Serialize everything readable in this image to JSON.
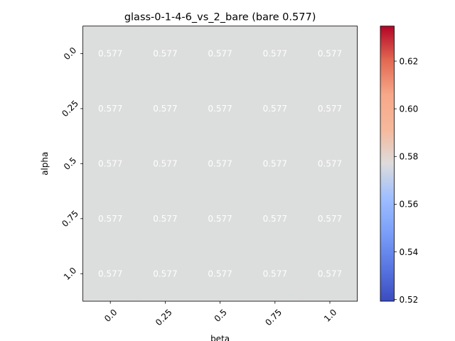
{
  "chart_data": {
    "type": "heatmap",
    "title": "glass-0-1-4-6_vs_2_bare (bare 0.577)",
    "xlabel": "beta",
    "ylabel": "alpha",
    "x_categories": [
      "0.0",
      "0.25",
      "0.5",
      "0.75",
      "1.0"
    ],
    "y_categories": [
      "0.0",
      "0.25",
      "0.5",
      "0.75",
      "1.0"
    ],
    "values": [
      [
        0.577,
        0.577,
        0.577,
        0.577,
        0.577
      ],
      [
        0.577,
        0.577,
        0.577,
        0.577,
        0.577
      ],
      [
        0.577,
        0.577,
        0.577,
        0.577,
        0.577
      ],
      [
        0.577,
        0.577,
        0.577,
        0.577,
        0.577
      ],
      [
        0.577,
        0.577,
        0.577,
        0.577,
        0.577
      ]
    ],
    "cell_labels": [
      [
        "0.577",
        "0.577",
        "0.577",
        "0.577",
        "0.577"
      ],
      [
        "0.577",
        "0.577",
        "0.577",
        "0.577",
        "0.577"
      ],
      [
        "0.577",
        "0.577",
        "0.577",
        "0.577",
        "0.577"
      ],
      [
        "0.577",
        "0.577",
        "0.577",
        "0.577",
        "0.577"
      ],
      [
        "0.577",
        "0.577",
        "0.577",
        "0.577",
        "0.577"
      ]
    ],
    "colormap": "coolwarm",
    "colorbar": {
      "range": [
        0.5193,
        0.6347
      ],
      "ticks": [
        0.52,
        0.54,
        0.56,
        0.58,
        0.6,
        0.62
      ],
      "tick_labels": [
        "0.52",
        "0.54",
        "0.56",
        "0.58",
        "0.60",
        "0.62"
      ]
    },
    "cell_color": "#dcdddd",
    "grid": false
  }
}
